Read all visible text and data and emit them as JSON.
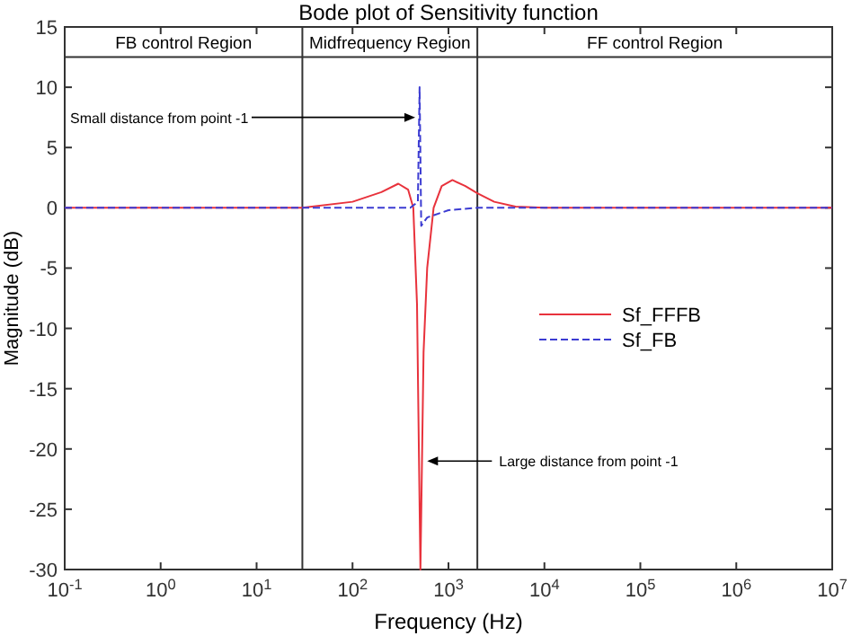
{
  "chart_data": {
    "type": "line",
    "title": "Bode plot of Sensitivity function",
    "xlabel": "Frequency (Hz)",
    "ylabel": "Magnitude (dB)",
    "log": "x",
    "xlim": [
      0.1,
      10000000
    ],
    "xticks": [
      {
        "value": 0.1,
        "label": "10$^{-1}$"
      },
      {
        "value": 1,
        "label": "10$^{0}$"
      },
      {
        "value": 10,
        "label": "10$^{1}$"
      },
      {
        "value": 100,
        "label": "10$^{2}$"
      },
      {
        "value": 1000,
        "label": "10$^{3}$"
      },
      {
        "value": 10000,
        "label": "10$^{4}$"
      },
      {
        "value": 100000,
        "label": "10$^{5}$"
      },
      {
        "value": 1000000,
        "label": "10$^{6}$"
      },
      {
        "value": 10000000,
        "label": "10$^{7}$"
      }
    ],
    "ylim": [
      -30,
      15
    ],
    "yticks": [
      -30,
      -25,
      -20,
      -15,
      -10,
      -5,
      0,
      5,
      10,
      15
    ],
    "grid": false,
    "legend": "right",
    "ref_lines": [
      {
        "axis": "x",
        "value": 30
      },
      {
        "axis": "x",
        "value": 2000
      },
      {
        "axis": "y",
        "value": 12.5
      }
    ],
    "annotations": [
      "FB control Region",
      "Midfrequency Region",
      "FF control Region",
      {
        "text": "Small distance from point -1",
        "x": 450,
        "y": 7.5
      },
      {
        "text": "Large distance from point -1",
        "x": 600,
        "y": -21
      }
    ],
    "series": [
      {
        "name": "Sf_FFFB",
        "color": "#e8323c",
        "line_style": "solid",
        "x": [
          0.1,
          10,
          30,
          100,
          200,
          300,
          380,
          430,
          470,
          510,
          550,
          600,
          700,
          850,
          1100,
          1500,
          2000,
          3000,
          5000,
          10000,
          10000000
        ],
        "values": [
          0,
          0,
          0,
          0.5,
          1.3,
          2,
          1.5,
          0,
          -8,
          -30,
          -12,
          -5,
          0,
          1.8,
          2.3,
          1.8,
          1.2,
          0.5,
          0.1,
          0,
          0
        ]
      },
      {
        "name": "Sf_FB",
        "color": "#3c3cd2",
        "line_style": "dashed",
        "x": [
          0.1,
          100,
          400,
          480,
          500,
          520,
          600,
          1000,
          2000,
          10000000
        ],
        "values": [
          0,
          0,
          0,
          0.5,
          10,
          -1.5,
          -0.8,
          -0.2,
          0,
          0
        ]
      }
    ]
  }
}
